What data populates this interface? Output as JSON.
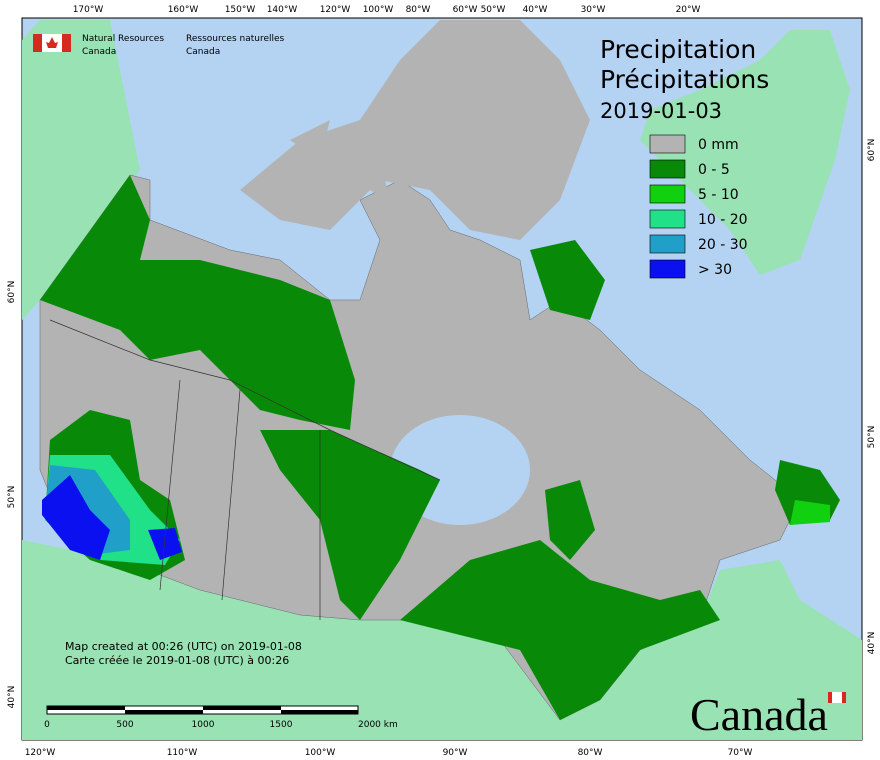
{
  "header": {
    "agency_en": "Natural Resources",
    "agency_en_2": "Canada",
    "agency_fr": "Ressources naturelles",
    "agency_fr_2": "Canada"
  },
  "title": {
    "line1": "Precipitation",
    "line2": "Précipitations",
    "date": "2019-01-03"
  },
  "legend": {
    "items": [
      {
        "label": "0 mm",
        "color": "#b3b3b3"
      },
      {
        "label": "0 - 5",
        "color": "#088a08"
      },
      {
        "label": "5 - 10",
        "color": "#10d010"
      },
      {
        "label": "10 - 20",
        "color": "#20e088"
      },
      {
        "label": "20 - 30",
        "color": "#20a0c8"
      },
      {
        "label": "> 30",
        "color": "#0a10f0"
      }
    ]
  },
  "notes": {
    "line1": "Map created at 00:26 (UTC) on 2019-01-08",
    "line2": "Carte créée le 2019-01-08 (UTC) à 00:26"
  },
  "scale_bar": {
    "labels": [
      "0",
      "500",
      "1000",
      "1500",
      "2000 km"
    ]
  },
  "graticule": {
    "top": [
      "170°W",
      "160°W",
      "150°W",
      "140°W",
      "120°W",
      "100°W",
      "80°W",
      "60°W",
      "50°W",
      "40°W",
      "30°W",
      "20°W"
    ],
    "bottom": [
      "120°W",
      "110°W",
      "100°W",
      "90°W",
      "80°W",
      "70°W"
    ],
    "left": [
      "60°N",
      "50°N",
      "40°N"
    ],
    "right": [
      "60°N",
      "50°N",
      "40°N"
    ]
  },
  "wordmark": "Canada"
}
